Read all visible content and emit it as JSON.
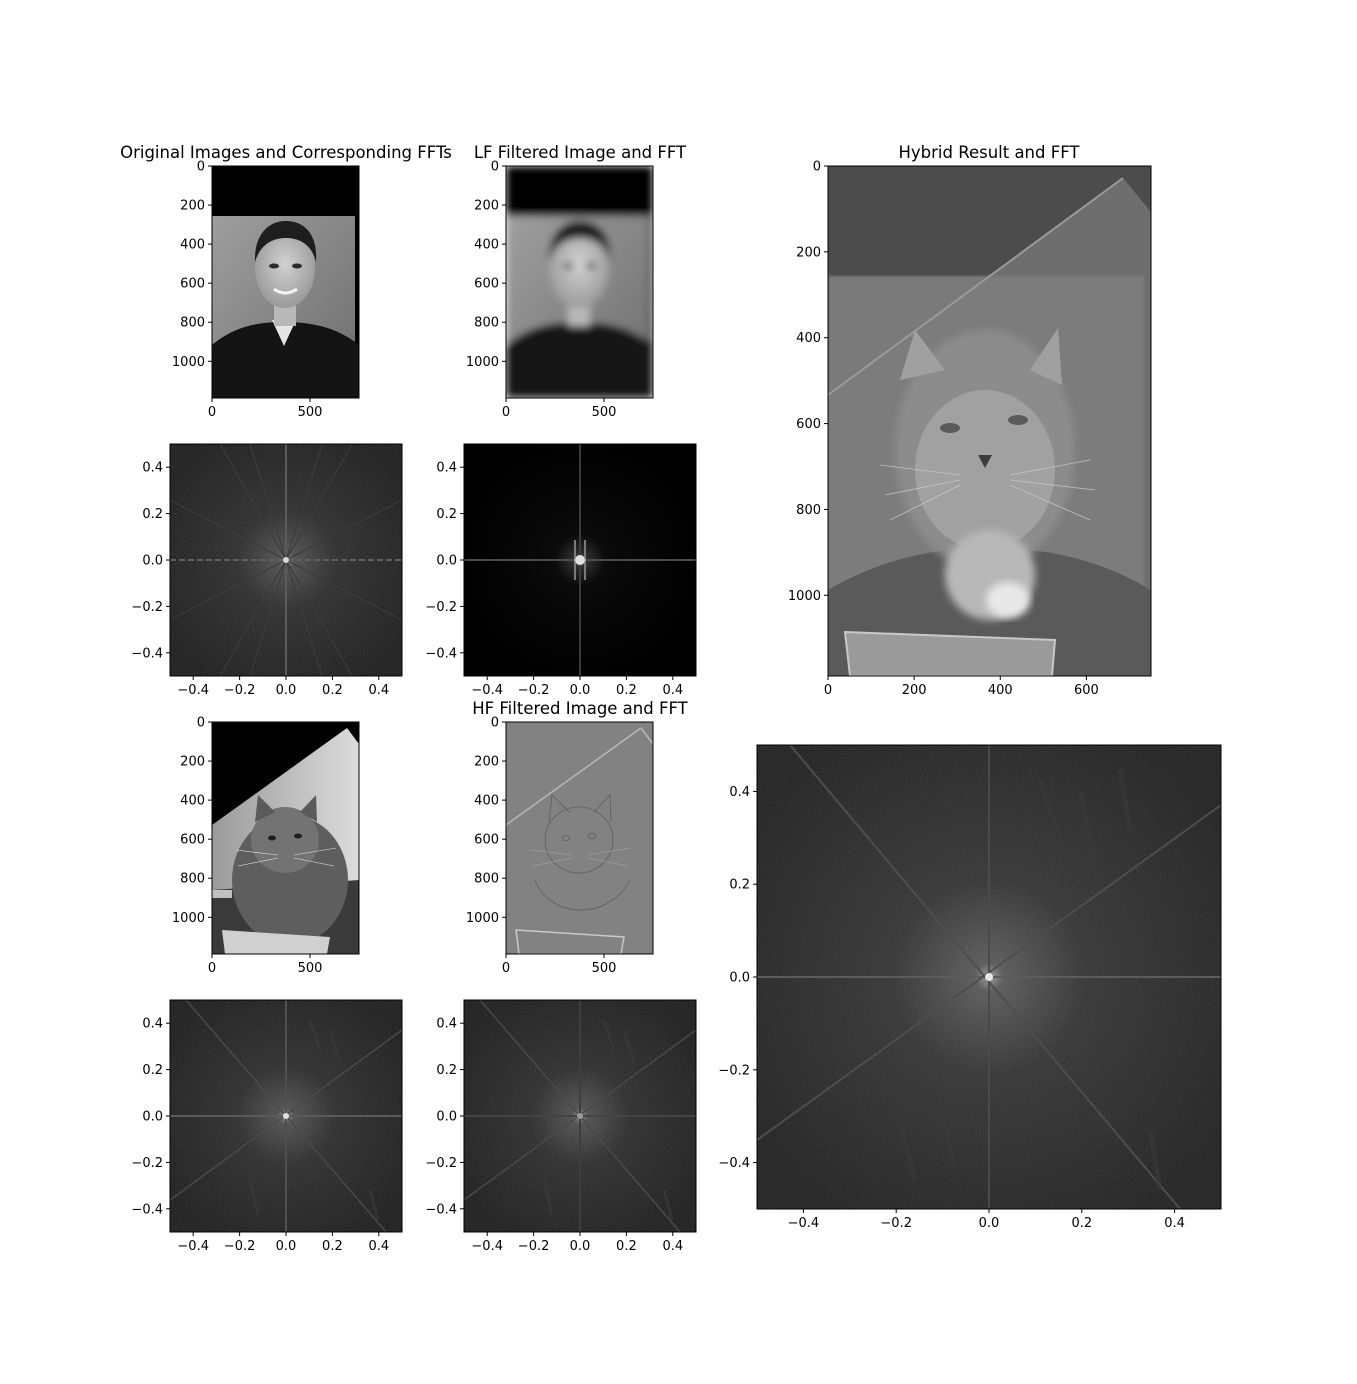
{
  "chart_data": [
    {
      "type": "image",
      "title": "Original Images and Corresponding FFTs",
      "content": "grayscale portrait photo of man",
      "x_ticks": [
        "0",
        "500"
      ],
      "y_ticks": [
        "0",
        "200",
        "400",
        "600",
        "800",
        "1000"
      ],
      "xlim": [
        0,
        750
      ],
      "ylim": [
        1188,
        0
      ]
    },
    {
      "type": "image",
      "title": "LF Filtered Image and FFT",
      "content": "blurred (low-pass) portrait",
      "x_ticks": [
        "0",
        "500"
      ],
      "y_ticks": [
        "0",
        "200",
        "400",
        "600",
        "800",
        "1000"
      ],
      "xlim": [
        0,
        750
      ],
      "ylim": [
        1188,
        0
      ]
    },
    {
      "type": "image",
      "title": "Hybrid Result and FFT",
      "content": "hybrid of man and cat",
      "x_ticks": [
        "0",
        "200",
        "400",
        "600"
      ],
      "y_ticks": [
        "0",
        "200",
        "400",
        "600",
        "800",
        "1000"
      ],
      "xlim": [
        0,
        750
      ],
      "ylim": [
        1188,
        0
      ]
    },
    {
      "type": "heatmap",
      "title": "",
      "content": "log-magnitude FFT of portrait",
      "x_ticks": [
        "−0.4",
        "−0.2",
        "0.0",
        "0.2",
        "0.4"
      ],
      "y_ticks": [
        "0.4",
        "0.2",
        "0.0",
        "−0.2",
        "−0.4"
      ],
      "xlim": [
        -0.5,
        0.5
      ],
      "ylim": [
        -0.5,
        0.5
      ]
    },
    {
      "type": "heatmap",
      "title": "",
      "content": "log-magnitude FFT of low-pass filtered portrait",
      "x_ticks": [
        "−0.4",
        "−0.2",
        "0.0",
        "0.2",
        "0.4"
      ],
      "y_ticks": [
        "0.4",
        "0.2",
        "0.0",
        "−0.2",
        "−0.4"
      ],
      "xlim": [
        -0.5,
        0.5
      ],
      "ylim": [
        -0.5,
        0.5
      ]
    },
    {
      "type": "image",
      "title": "",
      "content": "grayscale photo of cat, rotated",
      "x_ticks": [
        "0",
        "500"
      ],
      "y_ticks": [
        "0",
        "200",
        "400",
        "600",
        "800",
        "1000"
      ],
      "xlim": [
        0,
        750
      ],
      "ylim": [
        1188,
        0
      ]
    },
    {
      "type": "image",
      "title": "HF Filtered Image and FFT",
      "content": "high-pass filtered cat",
      "x_ticks": [
        "0",
        "500"
      ],
      "y_ticks": [
        "0",
        "200",
        "400",
        "600",
        "800",
        "1000"
      ],
      "xlim": [
        0,
        750
      ],
      "ylim": [
        1188,
        0
      ]
    },
    {
      "type": "heatmap",
      "title": "",
      "content": "log-magnitude FFT of hybrid result",
      "x_ticks": [
        "−0.4",
        "−0.2",
        "0.0",
        "0.2",
        "0.4"
      ],
      "y_ticks": [
        "0.4",
        "0.2",
        "0.0",
        "−0.2",
        "−0.4"
      ],
      "xlim": [
        -0.5,
        0.5
      ],
      "ylim": [
        -0.5,
        0.5
      ]
    },
    {
      "type": "heatmap",
      "title": "",
      "content": "log-magnitude FFT of cat",
      "x_ticks": [
        "−0.4",
        "−0.2",
        "0.0",
        "0.2",
        "0.4"
      ],
      "y_ticks": [
        "0.4",
        "0.2",
        "0.0",
        "−0.2",
        "−0.4"
      ],
      "xlim": [
        -0.5,
        0.5
      ],
      "ylim": [
        -0.5,
        0.5
      ]
    },
    {
      "type": "heatmap",
      "title": "",
      "content": "log-magnitude FFT of high-pass filtered cat",
      "x_ticks": [
        "−0.4",
        "−0.2",
        "0.0",
        "0.2",
        "0.4"
      ],
      "y_ticks": [
        "0.4",
        "0.2",
        "0.0",
        "−0.2",
        "−0.4"
      ],
      "xlim": [
        -0.5,
        0.5
      ],
      "ylim": [
        -0.5,
        0.5
      ]
    }
  ]
}
